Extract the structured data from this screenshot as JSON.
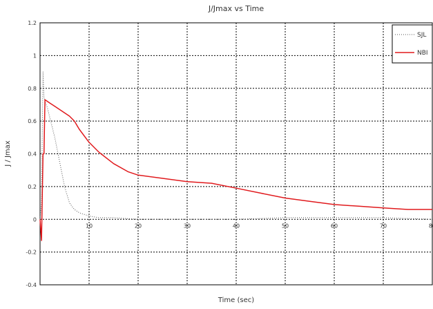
{
  "chart_data": {
    "type": "line",
    "title": "J/Jmax vs Time",
    "xlabel": "Time (sec)",
    "ylabel": "J / Jmax",
    "xlim": [
      0,
      80
    ],
    "ylim": [
      -0.4,
      1.2
    ],
    "x_ticks": [
      "10",
      "20",
      "30",
      "40",
      "50",
      "60",
      "70",
      "80"
    ],
    "y_ticks": [
      "-0.4",
      "-0.2",
      "0",
      "0.2",
      "0.4",
      "0.6",
      "0.8",
      "1",
      "1.2"
    ],
    "grid": true,
    "legend_position": "top-right",
    "series": [
      {
        "name": "SJL",
        "color": "#555555",
        "style": "dotted",
        "x": [
          0.0,
          0.3,
          0.6,
          0.8,
          1.0,
          1.5,
          2.0,
          3.0,
          4.0,
          5.0,
          6.0,
          7.0,
          8.0,
          9.0,
          10.0,
          12.0,
          15.0,
          20.0,
          25.0,
          30.0,
          40.0,
          50.0,
          60.0,
          70.0,
          80.0
        ],
        "y": [
          0.0,
          0.1,
          0.9,
          0.75,
          0.72,
          0.68,
          0.62,
          0.5,
          0.35,
          0.2,
          0.1,
          0.06,
          0.04,
          0.03,
          0.02,
          0.01,
          0.01,
          0.0,
          0.0,
          0.0,
          0.0,
          0.01,
          0.01,
          0.01,
          0.0
        ]
      },
      {
        "name": "NBI",
        "color": "#e0191c",
        "style": "solid",
        "x": [
          0.0,
          0.3,
          0.6,
          0.8,
          1.0,
          2.0,
          3.0,
          4.0,
          5.0,
          6.0,
          7.0,
          8.0,
          10.0,
          12.0,
          15.0,
          18.0,
          20.0,
          25.0,
          30.0,
          35.0,
          40.0,
          45.0,
          50.0,
          55.0,
          60.0,
          65.0,
          70.0,
          75.0,
          80.0
        ],
        "y": [
          0.0,
          -0.13,
          0.4,
          0.4,
          0.73,
          0.71,
          0.69,
          0.67,
          0.65,
          0.63,
          0.6,
          0.55,
          0.47,
          0.41,
          0.34,
          0.29,
          0.27,
          0.25,
          0.23,
          0.22,
          0.19,
          0.16,
          0.13,
          0.11,
          0.09,
          0.08,
          0.07,
          0.06,
          0.06
        ]
      }
    ]
  }
}
